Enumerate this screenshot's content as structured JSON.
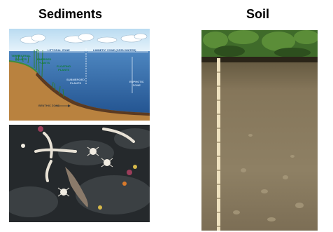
{
  "headings": {
    "sediments": "Sediments",
    "soil": "Soil"
  },
  "lake_diagram": {
    "terrestrial_plants": "TERRESTRIAL\nPLANTS",
    "emerged_plants": "EMERGED\nPLANTS",
    "littoral_zone": "LITTORAL ZONE",
    "limnetic_zone": "LIMNETIC ZONE (OPEN WATER)",
    "floating_plants": "FLOATING\nPLANTS",
    "submerged_plants": "SUBMERGED\nPLANTS",
    "euphotic_zone": "EUPHOTIC\nZONE",
    "benthic_zone": "BENTHIC ZONE"
  },
  "colors": {
    "water": "#2f6aa8",
    "sky": "#cfe6f5",
    "soil_profile": "#7c6e52",
    "label_green": "#0f7d36",
    "label_blue": "#1b4f8a"
  }
}
